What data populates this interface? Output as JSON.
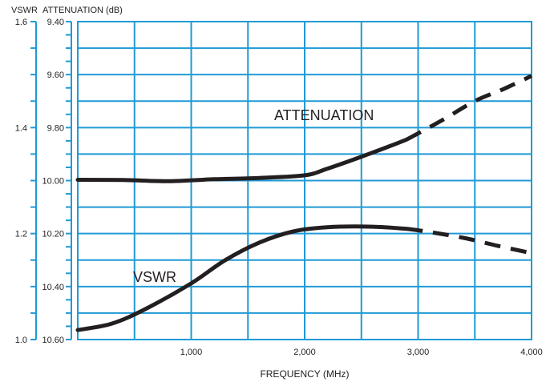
{
  "chart_data": {
    "type": "line",
    "title": "",
    "xlabel": "FREQUENCY (MHz)",
    "xlim": [
      0,
      4000
    ],
    "x_ticks": [
      1000,
      2000,
      3000,
      4000
    ],
    "x_tick_labels": [
      "1,000",
      "2,000",
      "3,000",
      "4,000"
    ],
    "y_axes": [
      {
        "label": "VSWR",
        "lim": [
          1.0,
          1.6
        ],
        "ticks": [
          1.0,
          1.2,
          1.4,
          1.6
        ],
        "tick_labels": [
          "1.0",
          "1.2",
          "1.4",
          "1.6"
        ]
      },
      {
        "label": "ATTENUATION (dB)",
        "lim": [
          10.6,
          9.4
        ],
        "inverted": true,
        "ticks": [
          9.4,
          9.6,
          9.8,
          10.0,
          10.2,
          10.4,
          10.6
        ],
        "tick_labels": [
          "9.40",
          "9.60",
          "9.80",
          "10.00",
          "10.20",
          "10.40",
          "10.60"
        ]
      }
    ],
    "grid": true,
    "grid_color": "#1f9ad6",
    "line_color": "#231f20",
    "series": [
      {
        "name": "ATTENUATION",
        "axis": "ATTENUATION (dB)",
        "points": [
          {
            "x": 0,
            "y": 9.997
          },
          {
            "x": 400,
            "y": 9.998
          },
          {
            "x": 800,
            "y": 10.002
          },
          {
            "x": 1200,
            "y": 9.995
          },
          {
            "x": 1600,
            "y": 9.99
          },
          {
            "x": 2000,
            "y": 9.98
          },
          {
            "x": 2200,
            "y": 9.955
          },
          {
            "x": 2500,
            "y": 9.91
          },
          {
            "x": 2750,
            "y": 9.87
          },
          {
            "x": 2900,
            "y": 9.845
          }
        ],
        "dashed_points": [
          {
            "x": 2900,
            "y": 9.845
          },
          {
            "x": 3200,
            "y": 9.775
          },
          {
            "x": 3500,
            "y": 9.7
          },
          {
            "x": 3750,
            "y": 9.655
          },
          {
            "x": 4000,
            "y": 9.605
          }
        ]
      },
      {
        "name": "VSWR",
        "axis": "VSWR",
        "points": [
          {
            "x": 0,
            "y": 1.018
          },
          {
            "x": 300,
            "y": 1.03
          },
          {
            "x": 600,
            "y": 1.058
          },
          {
            "x": 1000,
            "y": 1.106
          },
          {
            "x": 1300,
            "y": 1.15
          },
          {
            "x": 1600,
            "y": 1.183
          },
          {
            "x": 1900,
            "y": 1.204
          },
          {
            "x": 2200,
            "y": 1.212
          },
          {
            "x": 2600,
            "y": 1.213
          },
          {
            "x": 2900,
            "y": 1.209
          }
        ],
        "dashed_points": [
          {
            "x": 2900,
            "y": 1.209
          },
          {
            "x": 3100,
            "y": 1.203
          },
          {
            "x": 3400,
            "y": 1.192
          },
          {
            "x": 3700,
            "y": 1.177
          },
          {
            "x": 4000,
            "y": 1.163
          }
        ]
      }
    ]
  }
}
